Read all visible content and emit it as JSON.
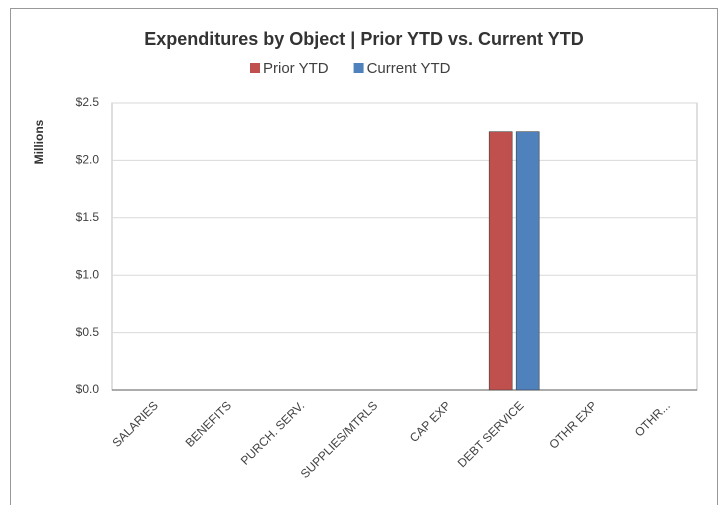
{
  "chart_data": {
    "type": "bar",
    "title": "Expenditures by Object | Prior YTD vs. Current YTD",
    "ylabel": "Millions",
    "categories": [
      "SALARIES",
      "BENEFITS",
      "PURCH. SERV.",
      "SUPPLIES/MTRLS",
      "CAP EXP",
      "DEBT SERVICE",
      "OTHR EXP",
      "OTHR..."
    ],
    "series": [
      {
        "name": "Prior YTD",
        "color": "#c0504d",
        "values": [
          0,
          0,
          0,
          0,
          0,
          2.25,
          0,
          0
        ]
      },
      {
        "name": "Current YTD",
        "color": "#4f81bd",
        "values": [
          0,
          0,
          0,
          0,
          0,
          2.25,
          0,
          0
        ]
      }
    ],
    "ylim": [
      0,
      2.5
    ],
    "yticks": [
      {
        "value": 0,
        "label": "$0.0"
      },
      {
        "value": 0.5,
        "label": "$0.5"
      },
      {
        "value": 1,
        "label": "$1.0"
      },
      {
        "value": 1.5,
        "label": "$1.5"
      },
      {
        "value": 2,
        "label": "$2.0"
      },
      {
        "value": 2.5,
        "label": "$2.5"
      }
    ],
    "grid": true,
    "legend": "top"
  }
}
